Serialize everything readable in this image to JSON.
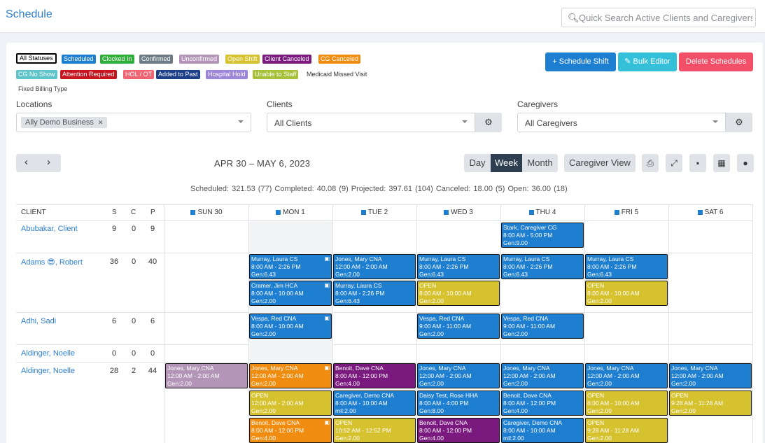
{
  "header": {
    "title": "Schedule",
    "search_placeholder": "Quick Search Active Clients and Caregivers"
  },
  "statuses": {
    "all": "All Statuses",
    "scheduled": "Scheduled",
    "clocked_in": "Clocked In",
    "confirmed": "Confirmed",
    "unconfirmed": "Unconfirmed",
    "open_shift": "Open Shift",
    "client_canceled": "Client Canceled",
    "cg_canceled": "CG Canceled",
    "cg_no_show": "CG No Show",
    "attention_required": "Attention Required",
    "hol_ot": "HOL / OT",
    "added_to_past": "Added to Past",
    "hospital_hold": "Hospital Hold",
    "unable_to_staff": "Unable to Staff",
    "medicaid_missed": "Medicaid Missed Visit",
    "fixed_billing": "Fixed Billing Type"
  },
  "actions": {
    "schedule_shift": "+ Schedule Shift",
    "bulk_editor": "Bulk Editor",
    "delete_schedules": "Delete Schedules"
  },
  "filters": {
    "locations_label": "Locations",
    "location_tag": "Ally Demo Business",
    "clients_label": "Clients",
    "clients_value": "All Clients",
    "caregivers_label": "Caregivers",
    "caregivers_value": "All Caregivers"
  },
  "toolbar": {
    "date_range": "APR 30 – MAY 6, 2023",
    "day": "Day",
    "week": "Week",
    "month": "Month",
    "caregiver_view": "Caregiver View"
  },
  "summary": "Scheduled: 321.53 (77)   Completed: 40.08 (9)   Projected: 397.61 (104)   Canceled: 18.00 (5)   Open: 36.00 (18)",
  "columns": {
    "client": "CLIENT",
    "s": "S",
    "c": "C",
    "p": "P"
  },
  "days": [
    "SUN 30",
    "MON 1",
    "TUE 2",
    "WED 3",
    "THU 4",
    "FRI 5",
    "SAT 6"
  ],
  "rows": [
    {
      "client": "Abubakar, Client",
      "s": "9",
      "c": "0",
      "p": "9"
    },
    {
      "client": "Adams 😎, Robert",
      "s": "36",
      "c": "0",
      "p": "40"
    },
    {
      "client": "Adhi, Sadi",
      "s": "6",
      "c": "0",
      "p": "6"
    },
    {
      "client": "Aldinger, Noelle",
      "s": "0",
      "c": "0",
      "p": "0"
    },
    {
      "client": "Aldinger, Noelle",
      "s": "28",
      "c": "2",
      "p": "44"
    }
  ],
  "shifts": [
    {
      "l1": "Stark, Caregiver CG",
      "l2": "8:00 AM - 5:00 PM",
      "l3": "Gen:9.00",
      "color": "#1e7ed0"
    },
    {
      "l1": "Murray, Laura CS",
      "l2": "8:00 AM - 2:26 PM",
      "l3": "Gen:6.43",
      "color": "#1e7ed0"
    },
    {
      "l1": "Jones, Mary CNA",
      "l2": "12:00 AM - 2:00 AM",
      "l3": "Gen:2.00",
      "color": "#1e7ed0"
    },
    {
      "l1": "Murray, Laura CS",
      "l2": "8:00 AM - 2:26 PM",
      "l3": "Gen:6.43",
      "color": "#1e7ed0"
    },
    {
      "l1": "Murray, Laura CS",
      "l2": "8:00 AM - 2:26 PM",
      "l3": "Gen:6.43",
      "color": "#1e7ed0"
    },
    {
      "l1": "Murray, Laura CS",
      "l2": "8:00 AM - 2:26 PM",
      "l3": "Gen:6.43",
      "color": "#1e7ed0"
    },
    {
      "l1": "Cramer, Jim HCA",
      "l2": "8:00 AM - 10:00 AM",
      "l3": "Gen:2.00",
      "color": "#1e7ed0"
    },
    {
      "l1": "Murray, Laura CS",
      "l2": "8:00 AM - 2:26 PM",
      "l3": "Gen:6.43",
      "color": "#1e7ed0"
    },
    {
      "l1": "OPEN",
      "l2": "8:00 AM - 10:00 AM",
      "l3": "Gen:2.00",
      "color": "#d6c12e"
    },
    {
      "l1": "OPEN",
      "l2": "8:00 AM - 10:00 AM",
      "l3": "Gen:2.00",
      "color": "#d6c12e"
    },
    {
      "l1": "Vespa, Red CNA",
      "l2": "8:00 AM - 10:00 AM",
      "l3": "Gen:2.00",
      "color": "#1e7ed0"
    },
    {
      "l1": "Vespa, Red CNA",
      "l2": "9:00 AM - 11:00 AM",
      "l3": "Gen:2.00",
      "color": "#1e7ed0"
    },
    {
      "l1": "Vespa, Red CNA",
      "l2": "9:00 AM - 11:00 AM",
      "l3": "Gen:2.00",
      "color": "#1e7ed0"
    },
    {
      "l1": "Jones, Mary CNA",
      "l2": "12:00 AM - 2:00 AM",
      "l3": "Gen:2.00",
      "color": "#b395b8"
    },
    {
      "l1": "Jones, Mary CNA",
      "l2": "12:00 AM - 2:00 AM",
      "l3": "Gen:2.00",
      "color": "#f08c10"
    },
    {
      "l1": "Benoit, Dave CNA",
      "l2": "8:00 AM - 12:00 PM",
      "l3": "Gen:4.00",
      "color": "#7a1a7e"
    },
    {
      "l1": "Jones, Mary CNA",
      "l2": "12:00 AM - 2:00 AM",
      "l3": "Gen:2.00",
      "color": "#1e7ed0"
    },
    {
      "l1": "Jones, Mary CNA",
      "l2": "12:00 AM - 2:00 AM",
      "l3": "Gen:2.00",
      "color": "#1e7ed0"
    },
    {
      "l1": "Jones, Mary CNA",
      "l2": "12:00 AM - 2:00 AM",
      "l3": "Gen:2.00",
      "color": "#1e7ed0"
    },
    {
      "l1": "Jones, Mary CNA",
      "l2": "12:00 AM - 2:00 AM",
      "l3": "Gen:2.00",
      "color": "#1e7ed0"
    },
    {
      "l1": "OPEN",
      "l2": "12:00 AM - 2:00 AM",
      "l3": "Gen:2.00",
      "color": "#d6c12e"
    },
    {
      "l1": "Caregiver, Demo CNA",
      "l2": "8:00 AM - 10:00 AM",
      "l3": "mil:2.00",
      "color": "#1e7ed0"
    },
    {
      "l1": "Daisy Test, Rose HHA",
      "l2": "8:00 AM - 4:00 PM",
      "l3": "Gen:8.00",
      "color": "#1e7ed0"
    },
    {
      "l1": "Benoit, Dave CNA",
      "l2": "8:00 AM - 12:00 PM",
      "l3": "Gen:4.00",
      "color": "#1e7ed0"
    },
    {
      "l1": "OPEN",
      "l2": "8:00 AM - 10:00 AM",
      "l3": "Gen:2.00",
      "color": "#d6c12e"
    },
    {
      "l1": "OPEN",
      "l2": "9:28 AM - 11:28 AM",
      "l3": "Gen:2.00",
      "color": "#d6c12e"
    },
    {
      "l1": "Benoit, Dave CNA",
      "l2": "8:00 AM - 12:00 PM",
      "l3": "Gen:4.00",
      "color": "#f08c10"
    },
    {
      "l1": "OPEN",
      "l2": "10:52 AM - 12:52 PM",
      "l3": "Gen:2.00",
      "color": "#d6c12e"
    },
    {
      "l1": "Benoit, Dave CNA",
      "l2": "8:00 AM - 12:00 PM",
      "l3": "Gen:4.00",
      "color": "#7a1a7e"
    },
    {
      "l1": "Caregiver, Demo CNA",
      "l2": "8:00 AM - 10:00 AM",
      "l3": "mil:2.00",
      "color": "#1e7ed0"
    },
    {
      "l1": "OPEN",
      "l2": "9:28 AM - 11:28 AM",
      "l3": "Gen:2.00",
      "color": "#d6c12e"
    }
  ]
}
